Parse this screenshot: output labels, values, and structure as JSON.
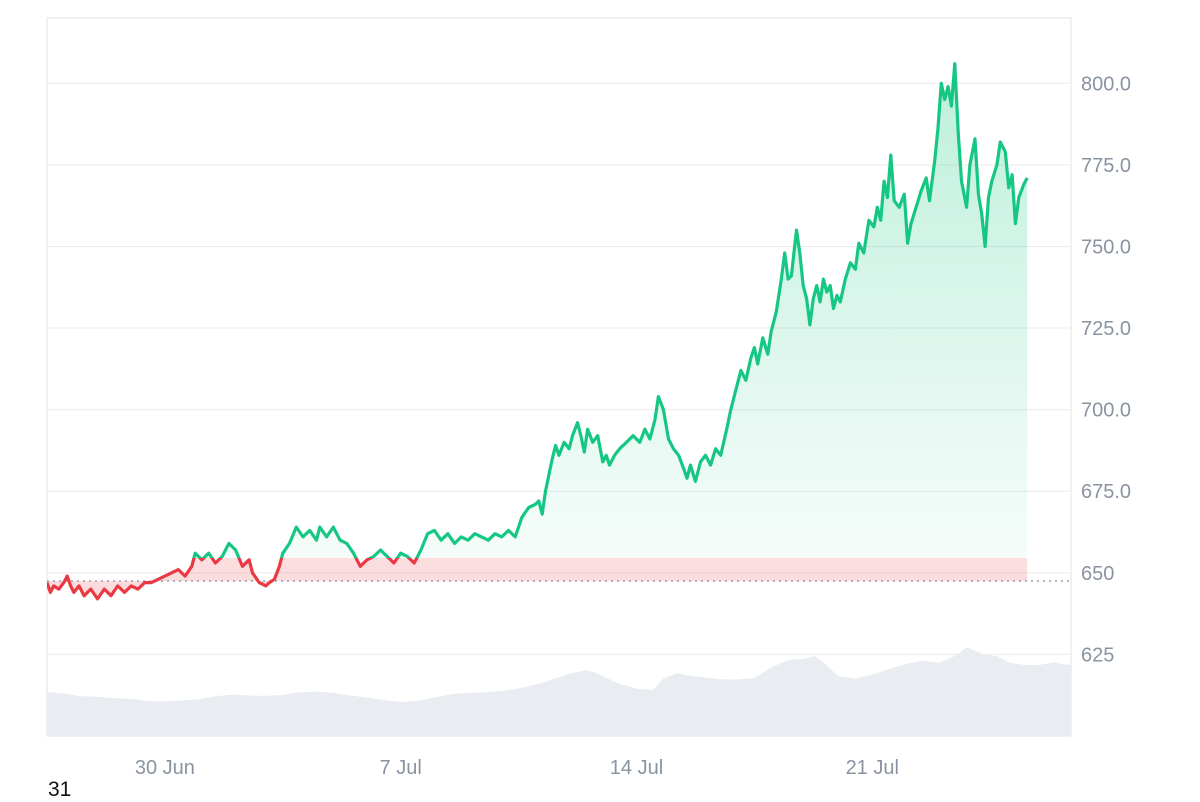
{
  "colors": {
    "up": "#16c784",
    "down": "#ea3943",
    "volume": "#e9edf1",
    "grid": "#ececec",
    "axis_text": "#8a93a2",
    "baseline": "#808a9d"
  },
  "corner_label": "31",
  "chart_data": {
    "type": "area",
    "baseline": 647.5,
    "ylim": [
      600,
      820
    ],
    "y_ticks": [
      625,
      650,
      675,
      700,
      725,
      750,
      775,
      800
    ],
    "y_tick_labels": [
      "625",
      "650",
      "675.0",
      "700.0",
      "725.0",
      "750.0",
      "775.0",
      "800.0"
    ],
    "x_ticks": [
      {
        "label": "30 Jun",
        "x": 3.5
      },
      {
        "label": "7 Jul",
        "x": 10.5
      },
      {
        "label": "14 Jul",
        "x": 17.5
      },
      {
        "label": "21 Jul",
        "x": 24.5
      }
    ],
    "xlim": [
      0,
      30.4
    ],
    "grid": true,
    "price": [
      [
        0.0,
        647
      ],
      [
        0.1,
        644
      ],
      [
        0.2,
        646
      ],
      [
        0.35,
        645
      ],
      [
        0.5,
        647
      ],
      [
        0.6,
        649
      ],
      [
        0.7,
        646
      ],
      [
        0.8,
        644
      ],
      [
        0.95,
        646
      ],
      [
        1.1,
        643
      ],
      [
        1.3,
        645
      ],
      [
        1.5,
        642
      ],
      [
        1.7,
        645
      ],
      [
        1.9,
        643
      ],
      [
        2.1,
        646
      ],
      [
        2.3,
        644
      ],
      [
        2.5,
        646
      ],
      [
        2.7,
        645
      ],
      [
        2.9,
        647
      ],
      [
        3.1,
        647
      ],
      [
        3.3,
        648
      ],
      [
        3.5,
        649
      ],
      [
        3.7,
        650
      ],
      [
        3.9,
        651
      ],
      [
        4.1,
        649
      ],
      [
        4.3,
        652
      ],
      [
        4.4,
        656
      ],
      [
        4.6,
        654
      ],
      [
        4.8,
        656
      ],
      [
        5.0,
        653
      ],
      [
        5.2,
        655
      ],
      [
        5.4,
        659
      ],
      [
        5.6,
        657
      ],
      [
        5.8,
        652
      ],
      [
        6.0,
        654
      ],
      [
        6.1,
        650
      ],
      [
        6.3,
        647
      ],
      [
        6.5,
        646
      ],
      [
        6.6,
        647
      ],
      [
        6.75,
        648
      ],
      [
        6.9,
        652
      ],
      [
        7.0,
        656
      ],
      [
        7.2,
        659
      ],
      [
        7.4,
        664
      ],
      [
        7.6,
        661
      ],
      [
        7.8,
        663
      ],
      [
        8.0,
        660
      ],
      [
        8.1,
        664
      ],
      [
        8.3,
        661
      ],
      [
        8.5,
        664
      ],
      [
        8.7,
        660
      ],
      [
        8.9,
        659
      ],
      [
        9.1,
        656
      ],
      [
        9.3,
        652
      ],
      [
        9.5,
        654
      ],
      [
        9.7,
        655
      ],
      [
        9.9,
        657
      ],
      [
        10.1,
        655
      ],
      [
        10.3,
        653
      ],
      [
        10.5,
        656
      ],
      [
        10.7,
        655
      ],
      [
        10.9,
        653
      ],
      [
        11.1,
        657
      ],
      [
        11.3,
        662
      ],
      [
        11.5,
        663
      ],
      [
        11.7,
        660
      ],
      [
        11.9,
        662
      ],
      [
        12.1,
        659
      ],
      [
        12.3,
        661
      ],
      [
        12.5,
        660
      ],
      [
        12.7,
        662
      ],
      [
        12.9,
        661
      ],
      [
        13.1,
        660
      ],
      [
        13.3,
        662
      ],
      [
        13.5,
        661
      ],
      [
        13.7,
        663
      ],
      [
        13.9,
        661
      ],
      [
        14.1,
        667
      ],
      [
        14.3,
        670
      ],
      [
        14.5,
        671
      ],
      [
        14.6,
        672
      ],
      [
        14.7,
        668
      ],
      [
        14.8,
        675
      ],
      [
        15.0,
        685
      ],
      [
        15.1,
        689
      ],
      [
        15.2,
        686
      ],
      [
        15.35,
        690
      ],
      [
        15.5,
        688
      ],
      [
        15.6,
        692
      ],
      [
        15.75,
        696
      ],
      [
        15.85,
        692
      ],
      [
        15.95,
        687
      ],
      [
        16.05,
        694
      ],
      [
        16.2,
        690
      ],
      [
        16.35,
        692
      ],
      [
        16.5,
        684
      ],
      [
        16.6,
        686
      ],
      [
        16.7,
        683
      ],
      [
        16.85,
        686
      ],
      [
        17.0,
        688
      ],
      [
        17.2,
        690
      ],
      [
        17.4,
        692
      ],
      [
        17.6,
        690
      ],
      [
        17.75,
        694
      ],
      [
        17.9,
        691
      ],
      [
        18.05,
        697
      ],
      [
        18.15,
        704
      ],
      [
        18.3,
        700
      ],
      [
        18.45,
        691
      ],
      [
        18.6,
        688
      ],
      [
        18.75,
        686
      ],
      [
        18.9,
        682
      ],
      [
        19.0,
        679
      ],
      [
        19.1,
        683
      ],
      [
        19.25,
        678
      ],
      [
        19.4,
        684
      ],
      [
        19.55,
        686
      ],
      [
        19.7,
        683
      ],
      [
        19.85,
        688
      ],
      [
        20.0,
        686
      ],
      [
        20.2,
        695
      ],
      [
        20.3,
        700
      ],
      [
        20.45,
        706
      ],
      [
        20.6,
        712
      ],
      [
        20.75,
        709
      ],
      [
        20.9,
        716
      ],
      [
        21.0,
        719
      ],
      [
        21.1,
        714
      ],
      [
        21.25,
        722
      ],
      [
        21.4,
        717
      ],
      [
        21.5,
        724
      ],
      [
        21.65,
        730
      ],
      [
        21.8,
        740
      ],
      [
        21.9,
        748
      ],
      [
        22.0,
        740
      ],
      [
        22.1,
        741
      ],
      [
        22.25,
        755
      ],
      [
        22.35,
        748
      ],
      [
        22.45,
        738
      ],
      [
        22.55,
        734
      ],
      [
        22.65,
        726
      ],
      [
        22.75,
        734
      ],
      [
        22.85,
        738
      ],
      [
        22.95,
        733
      ],
      [
        23.05,
        740
      ],
      [
        23.15,
        736
      ],
      [
        23.25,
        738
      ],
      [
        23.35,
        731
      ],
      [
        23.45,
        735
      ],
      [
        23.55,
        733
      ],
      [
        23.7,
        740
      ],
      [
        23.85,
        745
      ],
      [
        24.0,
        743
      ],
      [
        24.1,
        751
      ],
      [
        24.25,
        748
      ],
      [
        24.4,
        758
      ],
      [
        24.55,
        756
      ],
      [
        24.65,
        762
      ],
      [
        24.75,
        758
      ],
      [
        24.85,
        770
      ],
      [
        24.95,
        765
      ],
      [
        25.05,
        778
      ],
      [
        25.15,
        764
      ],
      [
        25.3,
        762
      ],
      [
        25.45,
        766
      ],
      [
        25.55,
        751
      ],
      [
        25.65,
        757
      ],
      [
        25.8,
        762
      ],
      [
        25.95,
        767
      ],
      [
        26.1,
        771
      ],
      [
        26.2,
        764
      ],
      [
        26.35,
        776
      ],
      [
        26.45,
        786
      ],
      [
        26.55,
        800
      ],
      [
        26.65,
        795
      ],
      [
        26.75,
        799
      ],
      [
        26.85,
        793
      ],
      [
        26.95,
        806
      ],
      [
        27.05,
        785
      ],
      [
        27.15,
        770
      ],
      [
        27.3,
        762
      ],
      [
        27.4,
        775
      ],
      [
        27.55,
        783
      ],
      [
        27.65,
        766
      ],
      [
        27.75,
        760
      ],
      [
        27.85,
        750
      ],
      [
        27.95,
        765
      ],
      [
        28.05,
        770
      ],
      [
        28.2,
        775
      ],
      [
        28.3,
        782
      ],
      [
        28.45,
        779
      ],
      [
        28.55,
        768
      ],
      [
        28.65,
        772
      ],
      [
        28.75,
        757
      ],
      [
        28.85,
        765
      ],
      [
        29.0,
        769
      ],
      [
        29.1,
        771
      ]
    ],
    "volume": [
      [
        0.0,
        613.5
      ],
      [
        0.5,
        613
      ],
      [
        1.0,
        612.2
      ],
      [
        1.5,
        612
      ],
      [
        2.0,
        611.6
      ],
      [
        2.5,
        611.4
      ],
      [
        3.0,
        610.7
      ],
      [
        3.5,
        610.6
      ],
      [
        4.0,
        610.9
      ],
      [
        4.5,
        611.2
      ],
      [
        5.0,
        612.2
      ],
      [
        5.5,
        612.7
      ],
      [
        6.0,
        612.4
      ],
      [
        6.5,
        612.3
      ],
      [
        7.0,
        612.6
      ],
      [
        7.5,
        613.4
      ],
      [
        8.0,
        613.6
      ],
      [
        8.5,
        613.2
      ],
      [
        9.0,
        612.4
      ],
      [
        9.5,
        611.8
      ],
      [
        10.0,
        611
      ],
      [
        10.5,
        610.4
      ],
      [
        11.0,
        610.8
      ],
      [
        11.5,
        611.8
      ],
      [
        12.0,
        612.8
      ],
      [
        12.5,
        613.2
      ],
      [
        13.0,
        613.4
      ],
      [
        13.5,
        613.8
      ],
      [
        14.0,
        614.6
      ],
      [
        14.5,
        615.7
      ],
      [
        15.0,
        617.3
      ],
      [
        15.5,
        619.1
      ],
      [
        16.0,
        620.2
      ],
      [
        16.3,
        619.4
      ],
      [
        16.7,
        617.4
      ],
      [
        17.0,
        616
      ],
      [
        17.5,
        614.5
      ],
      [
        18.0,
        614.2
      ],
      [
        18.3,
        617.6
      ],
      [
        18.7,
        619.2
      ],
      [
        19.0,
        618.6
      ],
      [
        19.5,
        618
      ],
      [
        20.0,
        617.4
      ],
      [
        20.5,
        617.3
      ],
      [
        21.0,
        617.8
      ],
      [
        21.5,
        621
      ],
      [
        22.0,
        623.3
      ],
      [
        22.5,
        623.7
      ],
      [
        22.8,
        624.6
      ],
      [
        23.0,
        623
      ],
      [
        23.5,
        618.3
      ],
      [
        24.0,
        617.6
      ],
      [
        24.5,
        618.8
      ],
      [
        25.0,
        620.5
      ],
      [
        25.5,
        622.1
      ],
      [
        26.0,
        623.1
      ],
      [
        26.5,
        622.5
      ],
      [
        27.0,
        624.8
      ],
      [
        27.3,
        627.2
      ],
      [
        27.5,
        626.3
      ],
      [
        27.8,
        625
      ],
      [
        28.2,
        624.5
      ],
      [
        28.6,
        622.4
      ],
      [
        29.0,
        621.8
      ],
      [
        29.4,
        621.7
      ],
      [
        29.7,
        622.2
      ],
      [
        29.9,
        622.6
      ],
      [
        30.1,
        622
      ],
      [
        30.4,
        621.8
      ]
    ]
  }
}
